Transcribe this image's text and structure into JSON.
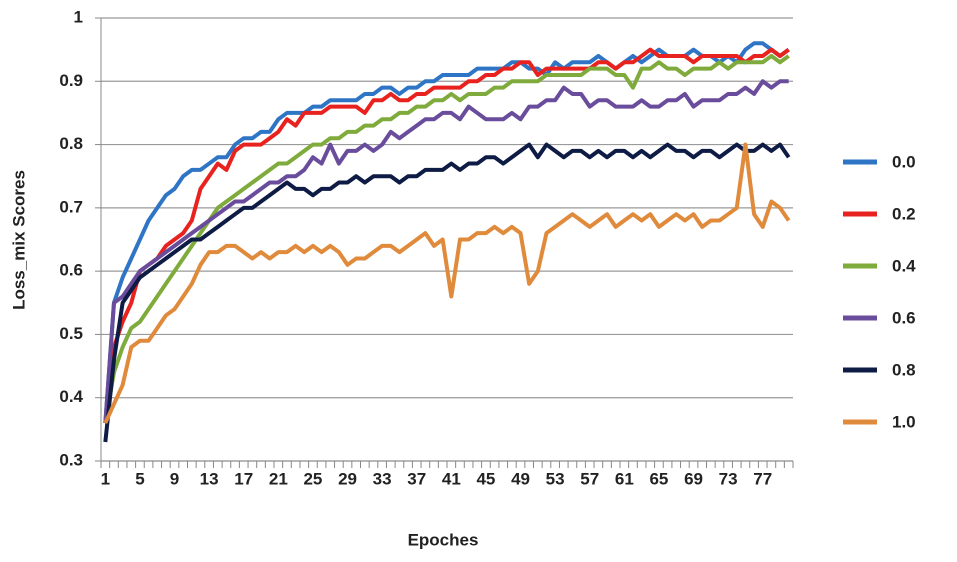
{
  "chart_data": {
    "type": "line",
    "y_label": "Loss_mix Scores",
    "x_label": "Epoches",
    "categories": [
      1,
      null,
      null,
      null,
      5,
      null,
      null,
      null,
      9,
      null,
      null,
      null,
      13,
      null,
      null,
      null,
      17,
      null,
      null,
      null,
      21,
      null,
      null,
      null,
      25,
      null,
      null,
      null,
      29,
      null,
      null,
      null,
      33,
      null,
      null,
      null,
      37,
      null,
      null,
      null,
      41,
      null,
      null,
      null,
      45,
      null,
      null,
      null,
      49,
      null,
      null,
      null,
      53,
      null,
      null,
      null,
      57,
      null,
      null,
      null,
      61,
      null,
      null,
      null,
      65,
      null,
      null,
      null,
      69,
      null,
      null,
      null,
      73,
      null,
      null,
      null,
      77,
      null,
      null,
      null
    ],
    "ylim": [
      0.3,
      1
    ],
    "yticks": [
      0.3,
      0.4,
      0.5,
      0.6,
      0.7,
      0.8,
      0.9,
      1
    ],
    "grid": true,
    "legend": "right",
    "series": [
      {
        "name": "0.0",
        "color": "#2e75c6",
        "values": [
          0.36,
          0.55,
          0.59,
          0.62,
          0.65,
          0.68,
          0.7,
          0.72,
          0.73,
          0.75,
          0.76,
          0.76,
          0.77,
          0.78,
          0.78,
          0.8,
          0.81,
          0.81,
          0.82,
          0.82,
          0.84,
          0.85,
          0.85,
          0.85,
          0.86,
          0.86,
          0.87,
          0.87,
          0.87,
          0.87,
          0.88,
          0.88,
          0.89,
          0.89,
          0.88,
          0.89,
          0.89,
          0.9,
          0.9,
          0.91,
          0.91,
          0.91,
          0.91,
          0.92,
          0.92,
          0.92,
          0.92,
          0.93,
          0.93,
          0.92,
          0.92,
          0.91,
          0.93,
          0.92,
          0.93,
          0.93,
          0.93,
          0.94,
          0.93,
          0.92,
          0.93,
          0.94,
          0.93,
          0.94,
          0.95,
          0.94,
          0.94,
          0.94,
          0.95,
          0.94,
          0.94,
          0.93,
          0.94,
          0.93,
          0.95,
          0.96,
          0.96,
          0.95,
          0.94,
          0.95
        ]
      },
      {
        "name": "0.2",
        "color": "#e8231f",
        "values": [
          0.36,
          0.48,
          0.52,
          0.55,
          0.6,
          0.61,
          0.62,
          0.64,
          0.65,
          0.66,
          0.68,
          0.73,
          0.75,
          0.77,
          0.76,
          0.79,
          0.8,
          0.8,
          0.8,
          0.81,
          0.82,
          0.84,
          0.83,
          0.85,
          0.85,
          0.85,
          0.86,
          0.86,
          0.86,
          0.86,
          0.85,
          0.87,
          0.87,
          0.88,
          0.87,
          0.87,
          0.88,
          0.88,
          0.89,
          0.89,
          0.89,
          0.89,
          0.9,
          0.9,
          0.91,
          0.91,
          0.92,
          0.92,
          0.93,
          0.93,
          0.91,
          0.92,
          0.92,
          0.92,
          0.92,
          0.92,
          0.92,
          0.93,
          0.93,
          0.92,
          0.93,
          0.93,
          0.94,
          0.95,
          0.94,
          0.94,
          0.94,
          0.94,
          0.93,
          0.94,
          0.94,
          0.94,
          0.94,
          0.94,
          0.93,
          0.94,
          0.94,
          0.95,
          0.94,
          0.95
        ]
      },
      {
        "name": "0.4",
        "color": "#7eab3c",
        "values": [
          0.36,
          0.44,
          0.48,
          0.51,
          0.52,
          0.54,
          0.56,
          0.58,
          0.6,
          0.62,
          0.64,
          0.66,
          0.68,
          0.7,
          0.71,
          0.72,
          0.73,
          0.74,
          0.75,
          0.76,
          0.77,
          0.77,
          0.78,
          0.79,
          0.8,
          0.8,
          0.81,
          0.81,
          0.82,
          0.82,
          0.83,
          0.83,
          0.84,
          0.84,
          0.85,
          0.85,
          0.86,
          0.86,
          0.87,
          0.87,
          0.88,
          0.87,
          0.88,
          0.88,
          0.88,
          0.89,
          0.89,
          0.9,
          0.9,
          0.9,
          0.9,
          0.91,
          0.91,
          0.91,
          0.91,
          0.91,
          0.92,
          0.92,
          0.92,
          0.91,
          0.91,
          0.89,
          0.92,
          0.92,
          0.93,
          0.92,
          0.92,
          0.91,
          0.92,
          0.92,
          0.92,
          0.93,
          0.92,
          0.93,
          0.93,
          0.93,
          0.93,
          0.94,
          0.93,
          0.94
        ]
      },
      {
        "name": "0.6",
        "color": "#6a4c9c",
        "values": [
          0.36,
          0.55,
          0.56,
          0.58,
          0.6,
          0.61,
          0.62,
          0.63,
          0.64,
          0.65,
          0.66,
          0.67,
          0.68,
          0.69,
          0.7,
          0.71,
          0.71,
          0.72,
          0.73,
          0.74,
          0.74,
          0.75,
          0.75,
          0.76,
          0.78,
          0.77,
          0.8,
          0.77,
          0.79,
          0.79,
          0.8,
          0.79,
          0.8,
          0.82,
          0.81,
          0.82,
          0.83,
          0.84,
          0.84,
          0.85,
          0.85,
          0.84,
          0.86,
          0.85,
          0.84,
          0.84,
          0.84,
          0.85,
          0.84,
          0.86,
          0.86,
          0.87,
          0.87,
          0.89,
          0.88,
          0.88,
          0.86,
          0.87,
          0.87,
          0.86,
          0.86,
          0.86,
          0.87,
          0.86,
          0.86,
          0.87,
          0.87,
          0.88,
          0.86,
          0.87,
          0.87,
          0.87,
          0.88,
          0.88,
          0.89,
          0.88,
          0.9,
          0.89,
          0.9,
          0.9
        ]
      },
      {
        "name": "0.8",
        "color": "#0d1b45",
        "values": [
          0.33,
          0.46,
          0.55,
          0.57,
          0.59,
          0.6,
          0.61,
          0.62,
          0.63,
          0.64,
          0.65,
          0.65,
          0.66,
          0.67,
          0.68,
          0.69,
          0.7,
          0.7,
          0.71,
          0.72,
          0.73,
          0.74,
          0.73,
          0.73,
          0.72,
          0.73,
          0.73,
          0.74,
          0.74,
          0.75,
          0.74,
          0.75,
          0.75,
          0.75,
          0.74,
          0.75,
          0.75,
          0.76,
          0.76,
          0.76,
          0.77,
          0.76,
          0.77,
          0.77,
          0.78,
          0.78,
          0.77,
          0.78,
          0.79,
          0.8,
          0.78,
          0.8,
          0.79,
          0.78,
          0.79,
          0.79,
          0.78,
          0.79,
          0.78,
          0.79,
          0.79,
          0.78,
          0.79,
          0.78,
          0.79,
          0.8,
          0.79,
          0.79,
          0.78,
          0.79,
          0.79,
          0.78,
          0.79,
          0.8,
          0.79,
          0.79,
          0.8,
          0.79,
          0.8,
          0.78
        ]
      },
      {
        "name": "1.0",
        "color": "#e08a3c",
        "values": [
          0.36,
          0.39,
          0.42,
          0.48,
          0.49,
          0.49,
          0.51,
          0.53,
          0.54,
          0.56,
          0.58,
          0.61,
          0.63,
          0.63,
          0.64,
          0.64,
          0.63,
          0.62,
          0.63,
          0.62,
          0.63,
          0.63,
          0.64,
          0.63,
          0.64,
          0.63,
          0.64,
          0.63,
          0.61,
          0.62,
          0.62,
          0.63,
          0.64,
          0.64,
          0.63,
          0.64,
          0.65,
          0.66,
          0.64,
          0.65,
          0.56,
          0.65,
          0.65,
          0.66,
          0.66,
          0.67,
          0.66,
          0.67,
          0.66,
          0.58,
          0.6,
          0.66,
          0.67,
          0.68,
          0.69,
          0.68,
          0.67,
          0.68,
          0.69,
          0.67,
          0.68,
          0.69,
          0.68,
          0.69,
          0.67,
          0.68,
          0.69,
          0.68,
          0.69,
          0.67,
          0.68,
          0.68,
          0.69,
          0.7,
          0.8,
          0.69,
          0.67,
          0.71,
          0.7,
          0.68
        ]
      }
    ]
  }
}
